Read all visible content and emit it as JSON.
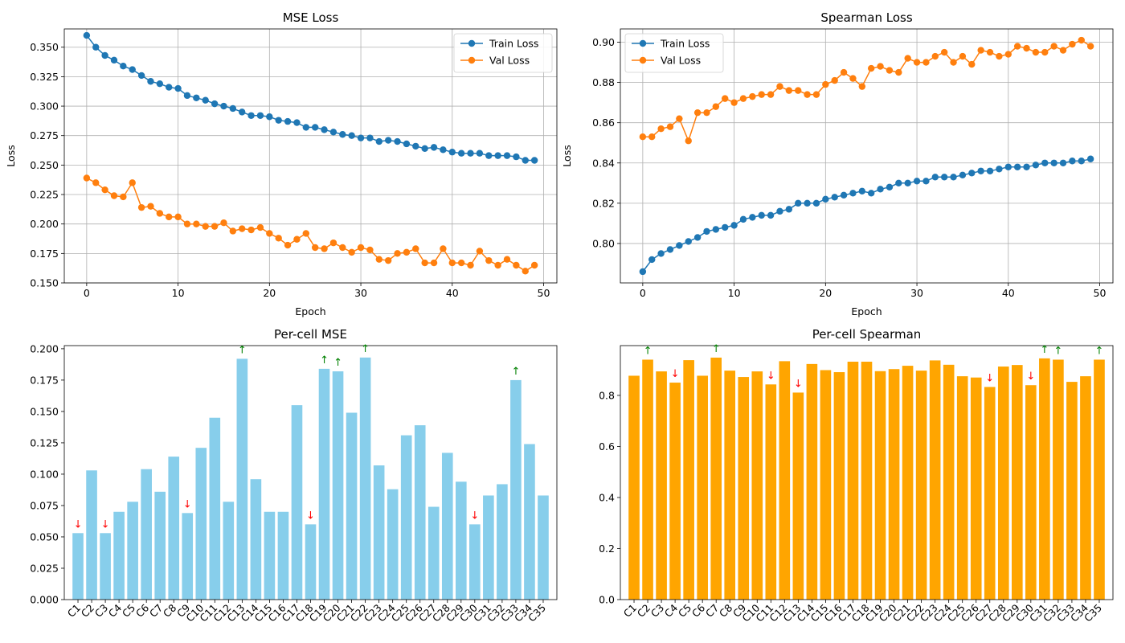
{
  "chart_data": [
    {
      "type": "line",
      "title": "MSE Loss",
      "xlabel": "Epoch",
      "ylabel": "Loss",
      "xlim": [
        -2.45,
        51.45
      ],
      "ylim": [
        0.15,
        0.3655
      ],
      "xticks": [
        0,
        10,
        20,
        30,
        40,
        50
      ],
      "yticks": [
        0.15,
        0.175,
        0.2,
        0.225,
        0.25,
        0.275,
        0.3,
        0.325,
        0.35
      ],
      "ytick_decimals": 3,
      "grid": true,
      "legend_position": "top-right",
      "series": [
        {
          "name": "Train Loss",
          "color": "#1f77b4",
          "marker": "circle",
          "x": [
            0,
            1,
            2,
            3,
            4,
            5,
            6,
            7,
            8,
            9,
            10,
            11,
            12,
            13,
            14,
            15,
            16,
            17,
            18,
            19,
            20,
            21,
            22,
            23,
            24,
            25,
            26,
            27,
            28,
            29,
            30,
            31,
            32,
            33,
            34,
            35,
            36,
            37,
            38,
            39,
            40,
            41,
            42,
            43,
            44,
            45,
            46,
            47,
            48,
            49
          ],
          "y": [
            0.36,
            0.35,
            0.343,
            0.339,
            0.334,
            0.331,
            0.326,
            0.321,
            0.319,
            0.316,
            0.315,
            0.309,
            0.307,
            0.305,
            0.302,
            0.3,
            0.298,
            0.295,
            0.292,
            0.292,
            0.291,
            0.288,
            0.287,
            0.286,
            0.282,
            0.282,
            0.28,
            0.278,
            0.276,
            0.275,
            0.273,
            0.273,
            0.27,
            0.271,
            0.27,
            0.268,
            0.266,
            0.264,
            0.265,
            0.263,
            0.261,
            0.26,
            0.26,
            0.26,
            0.258,
            0.258,
            0.258,
            0.257,
            0.254,
            0.254
          ]
        },
        {
          "name": "Val Loss",
          "color": "#ff7f0e",
          "marker": "circle",
          "x": [
            0,
            1,
            2,
            3,
            4,
            5,
            6,
            7,
            8,
            9,
            10,
            11,
            12,
            13,
            14,
            15,
            16,
            17,
            18,
            19,
            20,
            21,
            22,
            23,
            24,
            25,
            26,
            27,
            28,
            29,
            30,
            31,
            32,
            33,
            34,
            35,
            36,
            37,
            38,
            39,
            40,
            41,
            42,
            43,
            44,
            45,
            46,
            47,
            48,
            49
          ],
          "y": [
            0.239,
            0.235,
            0.229,
            0.224,
            0.223,
            0.235,
            0.214,
            0.215,
            0.209,
            0.206,
            0.206,
            0.2,
            0.2,
            0.198,
            0.198,
            0.201,
            0.194,
            0.196,
            0.195,
            0.197,
            0.192,
            0.188,
            0.182,
            0.187,
            0.192,
            0.18,
            0.179,
            0.184,
            0.18,
            0.176,
            0.18,
            0.178,
            0.17,
            0.169,
            0.175,
            0.176,
            0.179,
            0.167,
            0.167,
            0.179,
            0.167,
            0.167,
            0.165,
            0.177,
            0.169,
            0.165,
            0.17,
            0.165,
            0.16,
            0.165
          ]
        }
      ]
    },
    {
      "type": "line",
      "title": "Spearman Loss",
      "xlabel": "Epoch",
      "ylabel": "Loss",
      "xlim": [
        -2.45,
        51.45
      ],
      "ylim": [
        0.7804,
        0.9066
      ],
      "xticks": [
        0,
        10,
        20,
        30,
        40,
        50
      ],
      "yticks": [
        0.8,
        0.82,
        0.84,
        0.86,
        0.88,
        0.9
      ],
      "ytick_decimals": 2,
      "grid": true,
      "legend_position": "top-left",
      "series": [
        {
          "name": "Train Loss",
          "color": "#1f77b4",
          "marker": "circle",
          "x": [
            0,
            1,
            2,
            3,
            4,
            5,
            6,
            7,
            8,
            9,
            10,
            11,
            12,
            13,
            14,
            15,
            16,
            17,
            18,
            19,
            20,
            21,
            22,
            23,
            24,
            25,
            26,
            27,
            28,
            29,
            30,
            31,
            32,
            33,
            34,
            35,
            36,
            37,
            38,
            39,
            40,
            41,
            42,
            43,
            44,
            45,
            46,
            47,
            48,
            49
          ],
          "y": [
            0.786,
            0.792,
            0.795,
            0.797,
            0.799,
            0.801,
            0.803,
            0.806,
            0.807,
            0.808,
            0.809,
            0.812,
            0.813,
            0.814,
            0.814,
            0.816,
            0.817,
            0.82,
            0.82,
            0.82,
            0.822,
            0.823,
            0.824,
            0.825,
            0.826,
            0.825,
            0.827,
            0.828,
            0.83,
            0.83,
            0.831,
            0.831,
            0.833,
            0.833,
            0.833,
            0.834,
            0.835,
            0.836,
            0.836,
            0.837,
            0.838,
            0.838,
            0.838,
            0.839,
            0.84,
            0.84,
            0.84,
            0.841,
            0.841,
            0.842
          ]
        },
        {
          "name": "Val Loss",
          "color": "#ff7f0e",
          "marker": "circle",
          "x": [
            0,
            1,
            2,
            3,
            4,
            5,
            6,
            7,
            8,
            9,
            10,
            11,
            12,
            13,
            14,
            15,
            16,
            17,
            18,
            19,
            20,
            21,
            22,
            23,
            24,
            25,
            26,
            27,
            28,
            29,
            30,
            31,
            32,
            33,
            34,
            35,
            36,
            37,
            38,
            39,
            40,
            41,
            42,
            43,
            44,
            45,
            46,
            47,
            48,
            49
          ],
          "y": [
            0.853,
            0.853,
            0.857,
            0.858,
            0.862,
            0.851,
            0.865,
            0.865,
            0.868,
            0.872,
            0.87,
            0.872,
            0.873,
            0.874,
            0.874,
            0.878,
            0.876,
            0.876,
            0.874,
            0.874,
            0.879,
            0.881,
            0.885,
            0.882,
            0.878,
            0.887,
            0.888,
            0.886,
            0.885,
            0.892,
            0.89,
            0.89,
            0.893,
            0.895,
            0.89,
            0.893,
            0.889,
            0.896,
            0.895,
            0.893,
            0.894,
            0.898,
            0.897,
            0.895,
            0.895,
            0.898,
            0.896,
            0.899,
            0.901,
            0.898
          ]
        }
      ]
    },
    {
      "type": "bar",
      "title": "Per-cell MSE",
      "ylim": [
        0,
        0.2025
      ],
      "xlim": [
        -1.0,
        35.0
      ],
      "yticks": [
        0.0,
        0.025,
        0.05,
        0.075,
        0.1,
        0.125,
        0.15,
        0.175,
        0.2
      ],
      "ytick_decimals": 3,
      "bar_color": "#87ceeb",
      "grid": false,
      "categories": [
        "C1",
        "C2",
        "C3",
        "C4",
        "C5",
        "C6",
        "C7",
        "C8",
        "C9",
        "C10",
        "C11",
        "C12",
        "C13",
        "C14",
        "C15",
        "C16",
        "C17",
        "C18",
        "C19",
        "C20",
        "C21",
        "C22",
        "C23",
        "C24",
        "C25",
        "C26",
        "C27",
        "C28",
        "C29",
        "C30",
        "C31",
        "C32",
        "C33",
        "C34",
        "C35"
      ],
      "values": [
        0.053,
        0.103,
        0.053,
        0.07,
        0.078,
        0.104,
        0.086,
        0.114,
        0.069,
        0.121,
        0.145,
        0.078,
        0.192,
        0.096,
        0.07,
        0.07,
        0.155,
        0.06,
        0.184,
        0.182,
        0.149,
        0.193,
        0.107,
        0.088,
        0.131,
        0.139,
        0.074,
        0.117,
        0.094,
        0.06,
        0.083,
        0.092,
        0.175,
        0.124,
        0.083
      ],
      "annotations": [
        {
          "category": "C1",
          "symbol": "↓",
          "color": "#ff0000"
        },
        {
          "category": "C3",
          "symbol": "↓",
          "color": "#ff0000"
        },
        {
          "category": "C9",
          "symbol": "↓",
          "color": "#ff0000"
        },
        {
          "category": "C18",
          "symbol": "↓",
          "color": "#ff0000"
        },
        {
          "category": "C30",
          "symbol": "↓",
          "color": "#ff0000"
        },
        {
          "category": "C13",
          "symbol": "↑",
          "color": "#008000"
        },
        {
          "category": "C19",
          "symbol": "↑",
          "color": "#008000"
        },
        {
          "category": "C20",
          "symbol": "↑",
          "color": "#008000"
        },
        {
          "category": "C22",
          "symbol": "↑",
          "color": "#008000"
        },
        {
          "category": "C33",
          "symbol": "↑",
          "color": "#008000"
        }
      ]
    },
    {
      "type": "bar",
      "title": "Per-cell Spearman",
      "ylim": [
        0,
        0.995
      ],
      "xlim": [
        -1.0,
        35.0
      ],
      "yticks": [
        0.0,
        0.2,
        0.4,
        0.6,
        0.8
      ],
      "ytick_decimals": 1,
      "bar_color": "#ffa500",
      "grid": false,
      "categories": [
        "C1",
        "C2",
        "C3",
        "C4",
        "C5",
        "C6",
        "C7",
        "C8",
        "C9",
        "C10",
        "C11",
        "C12",
        "C13",
        "C14",
        "C15",
        "C16",
        "C17",
        "C18",
        "C19",
        "C20",
        "C21",
        "C22",
        "C23",
        "C24",
        "C25",
        "C26",
        "C27",
        "C28",
        "C29",
        "C30",
        "C31",
        "C32",
        "C33",
        "C34",
        "C35"
      ],
      "values": [
        0.877,
        0.94,
        0.894,
        0.85,
        0.938,
        0.877,
        0.948,
        0.897,
        0.872,
        0.894,
        0.843,
        0.934,
        0.811,
        0.923,
        0.899,
        0.891,
        0.932,
        0.932,
        0.895,
        0.903,
        0.916,
        0.897,
        0.937,
        0.92,
        0.875,
        0.87,
        0.833,
        0.913,
        0.919,
        0.84,
        0.945,
        0.94,
        0.853,
        0.875,
        0.94
      ],
      "annotations": [
        {
          "category": "C4",
          "symbol": "↓",
          "color": "#ff0000"
        },
        {
          "category": "C11",
          "symbol": "↓",
          "color": "#ff0000"
        },
        {
          "category": "C13",
          "symbol": "↓",
          "color": "#ff0000"
        },
        {
          "category": "C27",
          "symbol": "↓",
          "color": "#ff0000"
        },
        {
          "category": "C30",
          "symbol": "↓",
          "color": "#ff0000"
        },
        {
          "category": "C2",
          "symbol": "↑",
          "color": "#008000"
        },
        {
          "category": "C7",
          "symbol": "↑",
          "color": "#008000"
        },
        {
          "category": "C31",
          "symbol": "↑",
          "color": "#008000"
        },
        {
          "category": "C32",
          "symbol": "↑",
          "color": "#008000"
        },
        {
          "category": "C35",
          "symbol": "↑",
          "color": "#008000"
        }
      ]
    }
  ]
}
